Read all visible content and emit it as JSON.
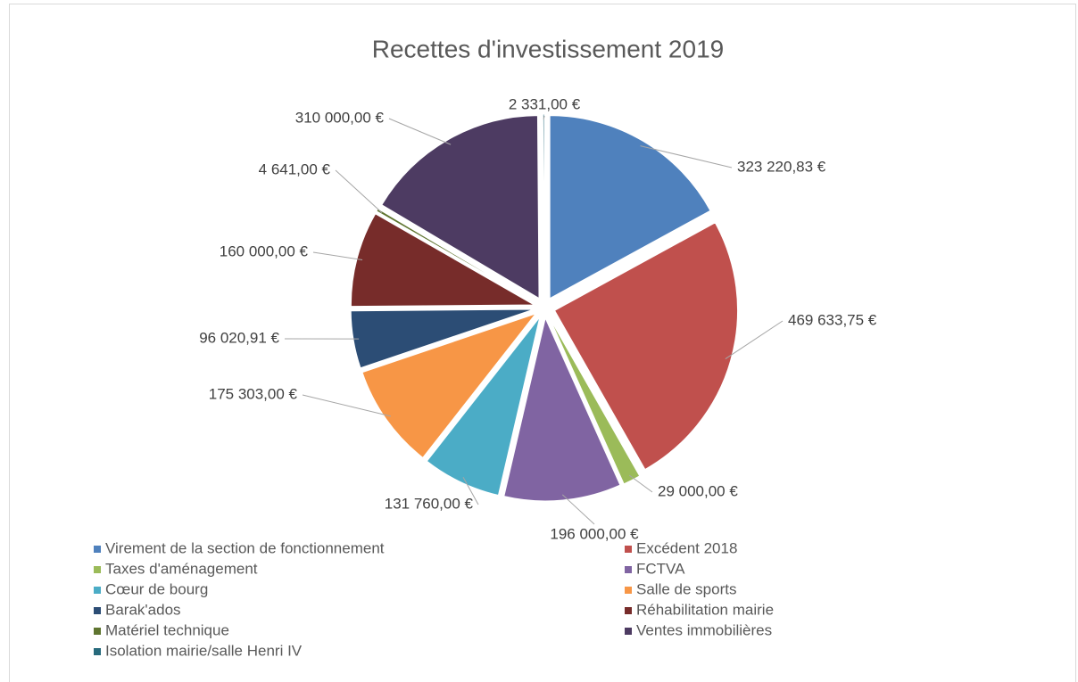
{
  "chart_data": {
    "type": "pie",
    "title": "Recettes d'investissement 2019",
    "categories": [
      "Virement de la section de fonctionnement",
      "Excédent 2018",
      "Taxes d'aménagement",
      "FCTVA",
      "Cœur de bourg",
      "Salle de sports",
      "Barak'ados",
      "Réhabilitation mairie",
      "Matériel technique",
      "Ventes immobilières",
      "Isolation mairie/salle Henri IV"
    ],
    "values": [
      323220.83,
      469633.75,
      29000,
      196000,
      131760,
      175303,
      96020.91,
      160000,
      4641,
      310000,
      2331
    ],
    "value_labels": [
      "323 220,83 €",
      "469 633,75 €",
      "29 000,00 €",
      "196 000,00 €",
      "131 760,00 €",
      "175 303,00 €",
      "96 020,91 €",
      "160 000,00 €",
      "4 641,00 €",
      "310 000,00 €",
      "2 331,00 €"
    ],
    "colors": [
      "#4f81bd",
      "#c0504d",
      "#9bbb59",
      "#8064a2",
      "#4bacc6",
      "#f79646",
      "#2c4d75",
      "#772c2a",
      "#5f7530",
      "#4d3b62",
      "#276a7c"
    ],
    "legend": "bottom"
  }
}
